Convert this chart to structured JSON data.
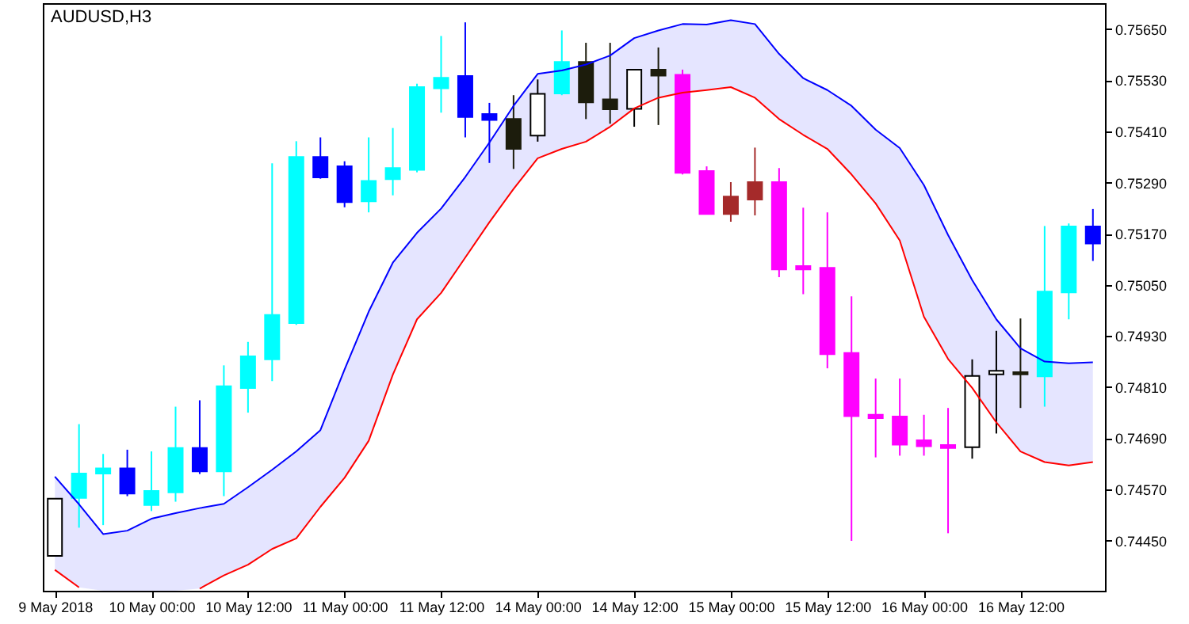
{
  "chart_data": {
    "type": "candlestick",
    "title": "AUDUSD,H3",
    "categories": [
      "9 May 2018",
      null,
      null,
      null,
      "10 May 00:00",
      null,
      null,
      null,
      "10 May 12:00",
      null,
      null,
      null,
      "11 May 00:00",
      null,
      null,
      null,
      "11 May 12:00",
      null,
      null,
      null,
      "14 May 00:00",
      null,
      null,
      null,
      "14 May 12:00",
      null,
      null,
      null,
      "15 May 00:00",
      null,
      null,
      null,
      "15 May 12:00",
      null,
      null,
      null,
      "16 May 00:00",
      null,
      null,
      null,
      "16 May 12:00",
      null,
      null,
      null
    ],
    "ohlc": [
      [
        0.74414,
        0.74548,
        0.74414,
        0.74548
      ],
      [
        0.7455,
        0.74723,
        0.7448,
        0.74607
      ],
      [
        0.74607,
        0.74653,
        0.74486,
        0.74619
      ],
      [
        0.74619,
        0.74663,
        0.74554,
        0.7456
      ],
      [
        0.74533,
        0.74659,
        0.74519,
        0.74566
      ],
      [
        0.74563,
        0.74764,
        0.74541,
        0.74667
      ],
      [
        0.74667,
        0.74779,
        0.74606,
        0.74612
      ],
      [
        0.74612,
        0.74861,
        0.74554,
        0.74812
      ],
      [
        0.74808,
        0.74916,
        0.7475,
        0.74882
      ],
      [
        0.74875,
        0.75335,
        0.74824,
        0.74979
      ],
      [
        0.7496,
        0.75387,
        0.74956,
        0.7535
      ],
      [
        0.7535,
        0.75396,
        0.75299,
        0.75302
      ],
      [
        0.75328,
        0.7534,
        0.75232,
        0.75244
      ],
      [
        0.75246,
        0.75396,
        0.7522,
        0.75294
      ],
      [
        0.75298,
        0.75418,
        0.7526,
        0.75324
      ],
      [
        0.7532,
        0.75522,
        0.75314,
        0.75514
      ],
      [
        0.75511,
        0.75634,
        0.75454,
        0.75536
      ],
      [
        0.7554,
        0.75666,
        0.75396,
        0.75444
      ],
      [
        0.75451,
        0.75477,
        0.75336,
        0.75437
      ],
      [
        0.75439,
        0.75495,
        0.75322,
        0.75369
      ],
      [
        0.754,
        0.75532,
        0.75386,
        0.75498
      ],
      [
        0.75499,
        0.75647,
        0.75495,
        0.75573
      ],
      [
        0.75573,
        0.75618,
        0.75439,
        0.75478
      ],
      [
        0.75485,
        0.75618,
        0.75428,
        0.75462
      ],
      [
        0.75463,
        0.75555,
        0.75421,
        0.75555
      ],
      [
        0.75555,
        0.75607,
        0.75425,
        0.75541
      ],
      [
        0.75543,
        0.75555,
        0.75309,
        0.75313
      ],
      [
        0.75317,
        0.75328,
        0.75216,
        0.75216
      ],
      [
        0.75216,
        0.75291,
        0.75198,
        0.75257
      ],
      [
        0.7525,
        0.75372,
        0.75213,
        0.75291
      ],
      [
        0.75291,
        0.75324,
        0.75068,
        0.75086
      ],
      [
        0.75094,
        0.75231,
        0.75028,
        0.75086
      ],
      [
        0.7509,
        0.7522,
        0.74854,
        0.74887
      ],
      [
        0.7489,
        0.75023,
        0.74449,
        0.74742
      ],
      [
        0.74745,
        0.7483,
        0.74645,
        0.74737
      ],
      [
        0.74741,
        0.7483,
        0.74649,
        0.74675
      ],
      [
        0.74685,
        0.74745,
        0.74649,
        0.74671
      ],
      [
        0.74674,
        0.74761,
        0.74467,
        0.74667
      ],
      [
        0.74669,
        0.74875,
        0.74642,
        0.74836
      ],
      [
        0.7484,
        0.74942,
        0.74701,
        0.74848
      ],
      [
        0.74845,
        0.74971,
        0.74761,
        0.7484
      ],
      [
        0.74835,
        0.75188,
        0.74764,
        0.75034
      ],
      [
        0.75032,
        0.75194,
        0.74969,
        0.75187
      ],
      [
        0.75187,
        0.75228,
        0.75106,
        0.75147
      ]
    ],
    "colors": [
      "#ffffff",
      "#00ffff",
      "#00ffff",
      "#0000ff",
      "#00ffff",
      "#00ffff",
      "#0000ff",
      "#00ffff",
      "#00ffff",
      "#00ffff",
      "#00ffff",
      "#0000ff",
      "#0000ff",
      "#00ffff",
      "#00ffff",
      "#00ffff",
      "#00ffff",
      "#0000ff",
      "#0000ff",
      "#1c1c0c",
      "#ffffff",
      "#00ffff",
      "#1c1c0c",
      "#1c1c0c",
      "#ffffff",
      "#1c1c0c",
      "#ff00ff",
      "#ff00ff",
      "#a52a2a",
      "#a52a2a",
      "#ff00ff",
      "#ff00ff",
      "#ff00ff",
      "#ff00ff",
      "#ff00ff",
      "#ff00ff",
      "#ff00ff",
      "#ff00ff",
      "#ffffff",
      "#ffffff",
      "#1c1c0c",
      "#00ffff",
      "#00ffff",
      "#0000ff"
    ],
    "series": [
      {
        "type": "line",
        "color": "#0000ff",
        "lower": [
          0.74381,
          0.7434,
          0.74332,
          0.74332,
          0.74332,
          0.74332,
          0.74337,
          0.74368,
          0.74393,
          0.7443,
          0.74455,
          0.74529,
          0.74597,
          0.74684,
          0.74839,
          0.74969,
          0.75031,
          0.75114,
          0.75197,
          0.75275,
          0.75347,
          0.75369,
          0.75386,
          0.75421,
          0.75464,
          0.75489,
          0.75501,
          0.75507,
          0.75514,
          0.75489,
          0.75439,
          0.75402,
          0.75369,
          0.75309,
          0.75241,
          0.75154,
          0.74975,
          0.74876,
          0.74808,
          0.74727,
          0.74659,
          0.74634,
          0.74626,
          0.74634
        ],
        "upper": [
          0.746,
          0.74535,
          0.74465,
          0.74473,
          0.74501,
          0.74514,
          0.74526,
          0.74536,
          0.74575,
          0.74616,
          0.74659,
          0.74709,
          0.74851,
          0.74987,
          0.75102,
          0.75172,
          0.75229,
          0.75303,
          0.75384,
          0.7547,
          0.75545,
          0.75553,
          0.75567,
          0.75588,
          0.75629,
          0.75647,
          0.75662,
          0.75661,
          0.75671,
          0.75662,
          0.75592,
          0.75535,
          0.75507,
          0.7547,
          0.75414,
          0.75371,
          0.75284,
          0.75167,
          0.75061,
          0.74969,
          0.74901,
          0.7487,
          0.74866,
          0.74868
        ],
        "values": [
          0.746,
          0.74535,
          0.74465,
          0.74473,
          0.74501,
          0.74514,
          0.74526,
          0.74536,
          0.74575,
          0.74616,
          0.74659,
          0.74709,
          0.74851,
          0.74987,
          0.75102,
          0.75172,
          0.75229,
          0.75303,
          0.75384,
          0.7547,
          0.75545,
          0.75553,
          0.75567,
          0.75588,
          0.75629,
          0.75647,
          0.75662,
          0.75661,
          0.75671,
          0.75662,
          0.75592,
          0.75535,
          0.75507,
          0.7547,
          0.75414,
          0.75371,
          0.75284,
          0.75167,
          0.75061,
          0.74969,
          0.74901,
          0.7487,
          0.74866,
          0.74868
        ]
      },
      {
        "type": "line",
        "color": "#ff0000",
        "values": [
          0.74381,
          0.7434,
          null,
          null,
          null,
          null,
          0.74337,
          0.74368,
          0.74393,
          0.7443,
          0.74455,
          0.74529,
          0.74597,
          0.74684,
          0.74839,
          0.74969,
          0.75031,
          0.75114,
          0.75197,
          0.75275,
          0.75347,
          0.75369,
          0.75386,
          0.75421,
          0.75464,
          0.75489,
          0.75501,
          0.75507,
          0.75514,
          0.75489,
          0.75439,
          0.75402,
          0.75369,
          0.75309,
          0.75241,
          0.75154,
          0.74975,
          0.74876,
          0.74808,
          0.74727,
          0.74659,
          0.74634,
          0.74626,
          0.74634
        ]
      }
    ],
    "ylim": [
      0.74332,
      0.75711
    ],
    "yticks": [
      {
        "value": 0.7445,
        "label": "0.74450"
      },
      {
        "value": 0.7457,
        "label": "0.74570"
      },
      {
        "value": 0.7469,
        "label": "0.74690"
      },
      {
        "value": 0.7481,
        "label": "0.74810"
      },
      {
        "value": 0.7493,
        "label": "0.74930"
      },
      {
        "value": 0.7505,
        "label": "0.75050"
      },
      {
        "value": 0.7517,
        "label": "0.75170"
      },
      {
        "value": 0.7529,
        "label": "0.75290"
      },
      {
        "value": 0.7541,
        "label": "0.75410"
      },
      {
        "value": 0.7553,
        "label": "0.75530"
      },
      {
        "value": 0.7565,
        "label": "0.75650"
      }
    ],
    "grid": false
  }
}
